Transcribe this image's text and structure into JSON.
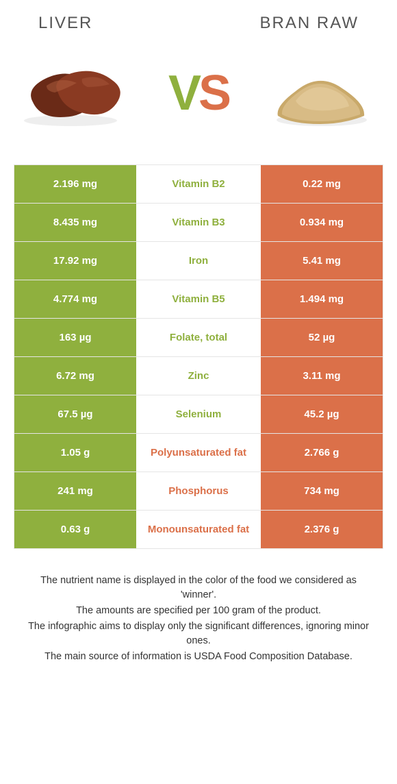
{
  "left_title": "Liver",
  "right_title": "Bran raw",
  "colors": {
    "left": "#8fb03e",
    "right": "#db7049",
    "vs_v": "#8fb03e",
    "vs_s": "#db7049",
    "row_border": "#e5e5e5",
    "note_text": "#333333"
  },
  "liver_svg": {
    "fill1": "#6a2a17",
    "fill2": "#8a3a22",
    "light": "#b06040"
  },
  "bran_svg": {
    "pile": "#d8bb85",
    "shadow": "#c9a96a",
    "top": "#e4cb9a"
  },
  "rows": [
    {
      "nutrient": "Vitamin B2",
      "left_val": "2.196 mg",
      "right_val": "0.22 mg",
      "winner": "left"
    },
    {
      "nutrient": "Vitamin B3",
      "left_val": "8.435 mg",
      "right_val": "0.934 mg",
      "winner": "left"
    },
    {
      "nutrient": "Iron",
      "left_val": "17.92 mg",
      "right_val": "5.41 mg",
      "winner": "left"
    },
    {
      "nutrient": "Vitamin B5",
      "left_val": "4.774 mg",
      "right_val": "1.494 mg",
      "winner": "left"
    },
    {
      "nutrient": "Folate, total",
      "left_val": "163 µg",
      "right_val": "52 µg",
      "winner": "left"
    },
    {
      "nutrient": "Zinc",
      "left_val": "6.72 mg",
      "right_val": "3.11 mg",
      "winner": "left"
    },
    {
      "nutrient": "Selenium",
      "left_val": "67.5 µg",
      "right_val": "45.2 µg",
      "winner": "left"
    },
    {
      "nutrient": "Polyunsaturated fat",
      "left_val": "1.05 g",
      "right_val": "2.766 g",
      "winner": "right"
    },
    {
      "nutrient": "Phosphorus",
      "left_val": "241 mg",
      "right_val": "734 mg",
      "winner": "right"
    },
    {
      "nutrient": "Monounsaturated fat",
      "left_val": "0.63 g",
      "right_val": "2.376 g",
      "winner": "right"
    }
  ],
  "notes": [
    "The nutrient name is displayed in the color of the food we considered as 'winner'.",
    "The amounts are specified per 100 gram of the product.",
    "The infographic aims to display only the significant differences, ignoring minor ones.",
    "The main source of information is USDA Food Composition Database."
  ]
}
